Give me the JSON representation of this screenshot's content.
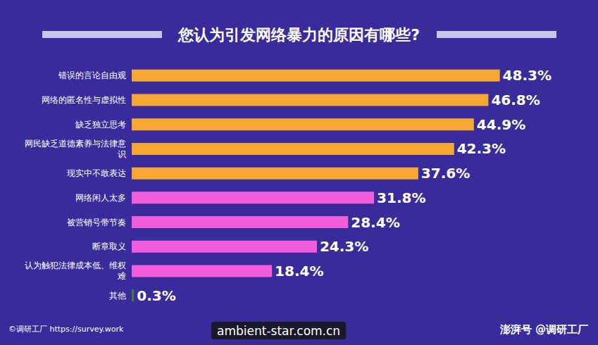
{
  "chart_data": {
    "type": "bar",
    "title": "您认为引发网络暴力的原因有哪些?",
    "orientation": "horizontal",
    "categories": [
      "错误的言论自由观",
      "网络的匿名性与虚拟性",
      "缺乏独立思考",
      "网民缺乏道德素养与法律意识",
      "现实中不敢表达",
      "网络闲人太多",
      "被营销号带节奏",
      "断章取义",
      "认为触犯法律成本低、维权难",
      "其他"
    ],
    "values": [
      48.3,
      46.8,
      44.9,
      42.3,
      37.6,
      31.8,
      28.4,
      24.3,
      18.4,
      0.3
    ],
    "value_labels": [
      "48.3%",
      "46.8%",
      "44.9%",
      "42.3%",
      "37.6%",
      "31.8%",
      "28.4%",
      "24.3%",
      "18.4%",
      "0.3%"
    ],
    "colors": [
      "#f7a832",
      "#f7a832",
      "#f7a832",
      "#f7a832",
      "#f7a832",
      "#f25ddc",
      "#f25ddc",
      "#f25ddc",
      "#f25ddc",
      "#3f7a3a"
    ],
    "xlim": [
      0,
      50
    ],
    "tick_labels": "y",
    "data_labels": true,
    "grid": false,
    "annotations": [
      "©调研工厂 https://survey.work",
      "澎湃号 @调研工厂",
      "ambient-star.com.cn"
    ]
  }
}
